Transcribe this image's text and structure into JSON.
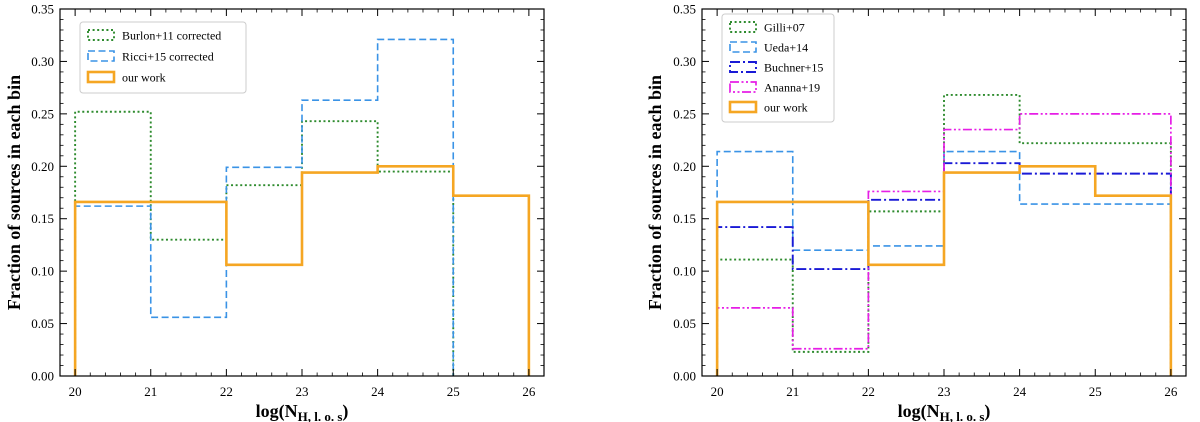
{
  "chart_data": [
    {
      "type": "step-histogram",
      "ylabel": "Fraction of sources in each bin",
      "xlabel_main": "log(N",
      "xlabel_sub": "H, l. o. s",
      "xlabel_close": ")",
      "xlim": [
        19.8,
        26.2
      ],
      "ylim": [
        0,
        0.35
      ],
      "xticks": [
        20,
        21,
        22,
        23,
        24,
        25,
        26
      ],
      "yticks": [
        "0.00",
        "0.05",
        "0.10",
        "0.15",
        "0.20",
        "0.25",
        "0.30",
        "0.35"
      ],
      "legend_position": "top-left",
      "series": [
        {
          "name": "Burlon+11 corrected",
          "color": "#2e8b2e",
          "style": "dotted",
          "edges": [
            20,
            21,
            22,
            23,
            24,
            25
          ],
          "values": [
            0.252,
            0.13,
            0.182,
            0.243,
            0.195
          ]
        },
        {
          "name": "Ricci+15 corrected",
          "color": "#3a93e6",
          "style": "dashed",
          "edges": [
            20,
            21,
            22,
            23,
            24,
            25
          ],
          "values": [
            0.162,
            0.056,
            0.199,
            0.263,
            0.321
          ]
        },
        {
          "name": "our work",
          "color": "#f5a623",
          "style": "solid",
          "edges": [
            20,
            21,
            22,
            23,
            24,
            25,
            26
          ],
          "values": [
            0.166,
            0.166,
            0.106,
            0.194,
            0.2,
            0.172
          ]
        }
      ]
    },
    {
      "type": "step-histogram",
      "ylabel": "Fraction of sources in each bin",
      "xlabel_main": "log(N",
      "xlabel_sub": "H, l. o. s",
      "xlabel_close": ")",
      "xlim": [
        19.8,
        26.2
      ],
      "ylim": [
        0,
        0.35
      ],
      "xticks": [
        20,
        21,
        22,
        23,
        24,
        25,
        26
      ],
      "yticks": [
        "0.00",
        "0.05",
        "0.10",
        "0.15",
        "0.20",
        "0.25",
        "0.30",
        "0.35"
      ],
      "legend_position": "top-left",
      "series": [
        {
          "name": "Gilli+07",
          "color": "#2e8b2e",
          "style": "dotted",
          "edges": [
            20,
            21,
            22,
            23,
            24,
            26
          ],
          "values": [
            0.111,
            0.023,
            0.157,
            0.268,
            0.222
          ]
        },
        {
          "name": "Ueda+14",
          "color": "#3a93e6",
          "style": "dashed",
          "edges": [
            20,
            21,
            22,
            23,
            24,
            26
          ],
          "values": [
            0.214,
            0.12,
            0.124,
            0.214,
            0.164
          ]
        },
        {
          "name": "Buchner+15",
          "color": "#1a1ad6",
          "style": "dashdot",
          "edges": [
            20,
            21,
            22,
            23,
            24,
            26
          ],
          "values": [
            0.142,
            0.102,
            0.168,
            0.203,
            0.193
          ]
        },
        {
          "name": "Ananna+19",
          "color": "#e61ee6",
          "style": "dashdotdot",
          "edges": [
            20,
            21,
            22,
            23,
            24,
            26
          ],
          "values": [
            0.065,
            0.026,
            0.176,
            0.235,
            0.25
          ]
        },
        {
          "name": "our work",
          "color": "#f5a623",
          "style": "solid",
          "edges": [
            20,
            21,
            22,
            23,
            24,
            25,
            26
          ],
          "values": [
            0.166,
            0.166,
            0.106,
            0.194,
            0.2,
            0.172
          ]
        }
      ]
    }
  ]
}
